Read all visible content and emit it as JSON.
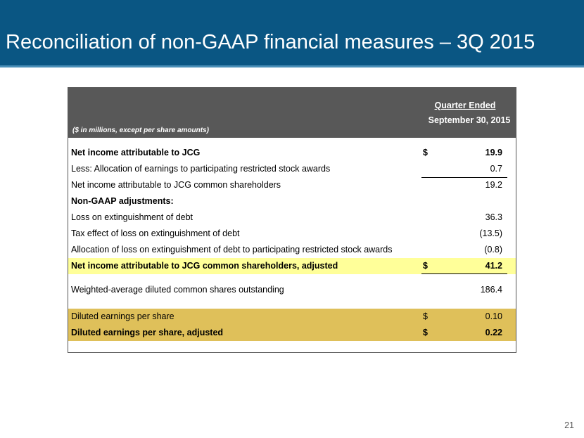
{
  "title": "Reconciliation of non-GAAP financial measures – 3Q 2015",
  "table": {
    "note": "($ in millions, except per share amounts)",
    "period_header": "Quarter Ended",
    "date_header": "September 30, 2015",
    "rows": [
      {
        "label": "Net income attributable to JCG",
        "currency": "$",
        "value": "19.9"
      },
      {
        "label": "Less: Allocation of earnings to participating restricted stock awards",
        "currency": "",
        "value": "0.7"
      },
      {
        "label": "Net income attributable to JCG common shareholders",
        "currency": "",
        "value": "19.2"
      },
      {
        "label": "Non-GAAP adjustments:",
        "currency": "",
        "value": ""
      },
      {
        "label": "Loss on extinguishment of debt",
        "currency": "",
        "value": "36.3"
      },
      {
        "label": "Tax effect of loss on extinguishment of debt",
        "currency": "",
        "value": "(13.5)"
      },
      {
        "label": "Allocation of loss on extinguishment of debt to participating restricted stock awards",
        "currency": "",
        "value": "(0.8)"
      },
      {
        "label": "Net income attributable to JCG common shareholders, adjusted",
        "currency": "$",
        "value": "41.2"
      },
      {
        "label": "Weighted-average diluted common shares outstanding",
        "currency": "",
        "value": "186.4"
      },
      {
        "label": "Diluted earnings per share",
        "currency": "$",
        "value": "0.10"
      },
      {
        "label": "Diluted earnings per share, adjusted",
        "currency": "$",
        "value": "0.22"
      }
    ]
  },
  "page_number": "21",
  "colors": {
    "title_bar": "#0a5683",
    "table_header": "#585858",
    "highlight_yellow": "#ffff99",
    "highlight_gold": "#dfc05a"
  }
}
